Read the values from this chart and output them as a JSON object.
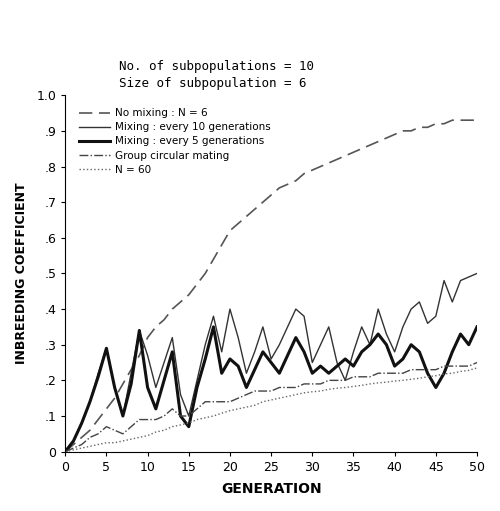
{
  "title_line1": "No. of subpopulations = 10",
  "title_line2": "Size of subpopulation = 6",
  "xlabel": "GENERATION",
  "ylabel": "INBREEDING COEFFICIENT",
  "xlim": [
    0,
    50
  ],
  "ylim": [
    0,
    1.0
  ],
  "xticks": [
    0,
    5,
    10,
    15,
    20,
    25,
    30,
    35,
    40,
    45,
    50
  ],
  "yticks": [
    0,
    0.1,
    0.2,
    0.3,
    0.4,
    0.5,
    0.6,
    0.7,
    0.8,
    0.9,
    1.0
  ],
  "ytick_labels": [
    "0",
    ".1",
    ".2",
    ".3",
    ".4",
    ".5",
    ".6",
    ".7",
    ".8",
    ".9",
    "1.0"
  ],
  "background_color": "#ffffff",
  "lines": {
    "no_mixing": {
      "label": "No mixing : N = 6",
      "linestyle": "dashed",
      "color": "#555555",
      "linewidth": 1.2,
      "x": [
        0,
        1,
        2,
        3,
        4,
        5,
        6,
        7,
        8,
        9,
        10,
        11,
        12,
        13,
        14,
        15,
        16,
        17,
        18,
        19,
        20,
        21,
        22,
        23,
        24,
        25,
        26,
        27,
        28,
        29,
        30,
        31,
        32,
        33,
        34,
        35,
        36,
        37,
        38,
        39,
        40,
        41,
        42,
        43,
        44,
        45,
        46,
        47,
        48,
        49,
        50
      ],
      "y": [
        0,
        0.02,
        0.04,
        0.06,
        0.09,
        0.12,
        0.15,
        0.19,
        0.23,
        0.27,
        0.32,
        0.35,
        0.37,
        0.4,
        0.42,
        0.44,
        0.47,
        0.5,
        0.54,
        0.58,
        0.62,
        0.64,
        0.66,
        0.68,
        0.7,
        0.72,
        0.74,
        0.75,
        0.76,
        0.78,
        0.79,
        0.8,
        0.81,
        0.82,
        0.83,
        0.84,
        0.85,
        0.86,
        0.87,
        0.88,
        0.89,
        0.9,
        0.9,
        0.91,
        0.91,
        0.92,
        0.92,
        0.93,
        0.93,
        0.93,
        0.93
      ]
    },
    "mixing_10": {
      "label": "Mixing : every 10 generations",
      "linestyle": "solid",
      "color": "#333333",
      "linewidth": 1.0,
      "x": [
        0,
        1,
        2,
        3,
        4,
        5,
        6,
        7,
        8,
        9,
        10,
        11,
        12,
        13,
        14,
        15,
        16,
        17,
        18,
        19,
        20,
        21,
        22,
        23,
        24,
        25,
        26,
        27,
        28,
        29,
        30,
        31,
        32,
        33,
        34,
        35,
        36,
        37,
        38,
        39,
        40,
        41,
        42,
        43,
        44,
        45,
        46,
        47,
        48,
        49,
        50
      ],
      "y": [
        0,
        0.03,
        0.08,
        0.14,
        0.22,
        0.29,
        0.18,
        0.1,
        0.22,
        0.34,
        0.27,
        0.18,
        0.25,
        0.32,
        0.16,
        0.1,
        0.2,
        0.3,
        0.38,
        0.28,
        0.4,
        0.32,
        0.22,
        0.28,
        0.35,
        0.26,
        0.3,
        0.35,
        0.4,
        0.38,
        0.25,
        0.3,
        0.35,
        0.25,
        0.2,
        0.28,
        0.35,
        0.3,
        0.4,
        0.33,
        0.28,
        0.35,
        0.4,
        0.42,
        0.36,
        0.38,
        0.48,
        0.42,
        0.48,
        0.49,
        0.5
      ]
    },
    "mixing_5": {
      "label": "Mixing : every 5 generations",
      "linestyle": "solid",
      "color": "#111111",
      "linewidth": 2.2,
      "x": [
        0,
        1,
        2,
        3,
        4,
        5,
        6,
        7,
        8,
        9,
        10,
        11,
        12,
        13,
        14,
        15,
        16,
        17,
        18,
        19,
        20,
        21,
        22,
        23,
        24,
        25,
        26,
        27,
        28,
        29,
        30,
        31,
        32,
        33,
        34,
        35,
        36,
        37,
        38,
        39,
        40,
        41,
        42,
        43,
        44,
        45,
        46,
        47,
        48,
        49,
        50
      ],
      "y": [
        0,
        0.03,
        0.08,
        0.14,
        0.21,
        0.29,
        0.18,
        0.1,
        0.19,
        0.34,
        0.18,
        0.12,
        0.2,
        0.28,
        0.1,
        0.07,
        0.18,
        0.26,
        0.35,
        0.22,
        0.26,
        0.24,
        0.18,
        0.23,
        0.28,
        0.25,
        0.22,
        0.27,
        0.32,
        0.28,
        0.22,
        0.24,
        0.22,
        0.24,
        0.26,
        0.24,
        0.28,
        0.3,
        0.33,
        0.3,
        0.24,
        0.26,
        0.3,
        0.28,
        0.22,
        0.18,
        0.22,
        0.28,
        0.33,
        0.3,
        0.35
      ]
    },
    "circular": {
      "label": "Group circular mating",
      "linestyle": "dashdot",
      "color": "#444444",
      "linewidth": 1.0,
      "x": [
        0,
        1,
        2,
        3,
        4,
        5,
        6,
        7,
        8,
        9,
        10,
        11,
        12,
        13,
        14,
        15,
        16,
        17,
        18,
        19,
        20,
        21,
        22,
        23,
        24,
        25,
        26,
        27,
        28,
        29,
        30,
        31,
        32,
        33,
        34,
        35,
        36,
        37,
        38,
        39,
        40,
        41,
        42,
        43,
        44,
        45,
        46,
        47,
        48,
        49,
        50
      ],
      "y": [
        0,
        0.01,
        0.02,
        0.04,
        0.05,
        0.07,
        0.06,
        0.05,
        0.07,
        0.09,
        0.09,
        0.09,
        0.1,
        0.12,
        0.1,
        0.1,
        0.12,
        0.14,
        0.14,
        0.14,
        0.14,
        0.15,
        0.16,
        0.17,
        0.17,
        0.17,
        0.18,
        0.18,
        0.18,
        0.19,
        0.19,
        0.19,
        0.2,
        0.2,
        0.2,
        0.21,
        0.21,
        0.21,
        0.22,
        0.22,
        0.22,
        0.22,
        0.23,
        0.23,
        0.23,
        0.23,
        0.24,
        0.24,
        0.24,
        0.24,
        0.25
      ]
    },
    "n60": {
      "label": "N = 60",
      "linestyle": "dotted",
      "color": "#666666",
      "linewidth": 1.0,
      "x": [
        0,
        1,
        2,
        3,
        4,
        5,
        6,
        7,
        8,
        9,
        10,
        11,
        12,
        13,
        14,
        15,
        16,
        17,
        18,
        19,
        20,
        21,
        22,
        23,
        24,
        25,
        26,
        27,
        28,
        29,
        30,
        31,
        32,
        33,
        34,
        35,
        36,
        37,
        38,
        39,
        40,
        41,
        42,
        43,
        44,
        45,
        46,
        47,
        48,
        49,
        50
      ],
      "y": [
        0,
        0.005,
        0.01,
        0.015,
        0.02,
        0.025,
        0.025,
        0.03,
        0.035,
        0.04,
        0.045,
        0.055,
        0.06,
        0.07,
        0.075,
        0.08,
        0.09,
        0.095,
        0.1,
        0.108,
        0.115,
        0.12,
        0.125,
        0.13,
        0.14,
        0.145,
        0.15,
        0.155,
        0.16,
        0.165,
        0.168,
        0.17,
        0.175,
        0.178,
        0.18,
        0.183,
        0.186,
        0.19,
        0.193,
        0.195,
        0.198,
        0.2,
        0.203,
        0.206,
        0.21,
        0.213,
        0.218,
        0.22,
        0.225,
        0.228,
        0.235
      ]
    }
  }
}
